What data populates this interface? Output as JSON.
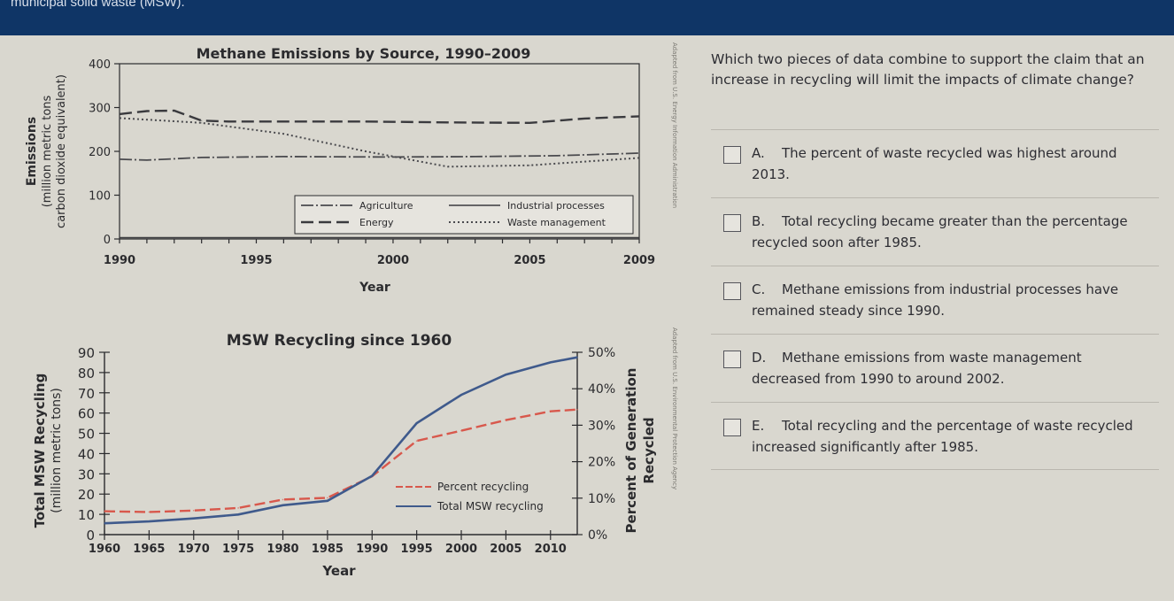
{
  "header": {
    "text": "municipal solid waste (MSW)."
  },
  "chart_data": [
    {
      "type": "line",
      "title": "Methane Emissions by Source, 1990–2009",
      "xlabel": "Year",
      "ylabel_line1": "Emissions",
      "ylabel_line2": "(million metric tons",
      "ylabel_line3": "carbon dioxide equivalent)",
      "xlim": [
        1990,
        2009
      ],
      "ylim": [
        0,
        400
      ],
      "xticks": [
        "1990",
        "1995",
        "2000",
        "2005",
        "2009"
      ],
      "yticks": [
        "0",
        "100",
        "200",
        "300",
        "400"
      ],
      "legend_position": "bottom-right",
      "series": [
        {
          "name": "Agriculture",
          "style": "dash-dot",
          "x": [
            1990,
            1991,
            1993,
            1996,
            2000,
            2003,
            2006,
            2009
          ],
          "values": [
            182,
            180,
            186,
            188,
            187,
            188,
            190,
            196
          ]
        },
        {
          "name": "Energy",
          "style": "dash",
          "x": [
            1990,
            1991,
            1992,
            1993,
            1994,
            1996,
            1999,
            2002,
            2005,
            2007,
            2009
          ],
          "values": [
            285,
            292,
            293,
            270,
            268,
            268,
            268,
            266,
            265,
            275,
            280
          ]
        },
        {
          "name": "Industrial processes",
          "style": "solid-thin",
          "x": [
            1990,
            2009
          ],
          "values": [
            3,
            3
          ]
        },
        {
          "name": "Waste management",
          "style": "dotted",
          "x": [
            1990,
            1993,
            1996,
            1999,
            2002,
            2005,
            2009
          ],
          "values": [
            276,
            265,
            240,
            200,
            165,
            168,
            185
          ]
        }
      ]
    },
    {
      "type": "line",
      "title": "MSW Recycling since 1960",
      "xlabel": "Year",
      "ylabel_line1": "Total MSW Recycling",
      "ylabel_line2": "(million metric tons)",
      "ylabel_right_line1": "Percent of Generation",
      "ylabel_right_line2": "Recycled",
      "xlim": [
        1960,
        2013
      ],
      "ylim": [
        0,
        90
      ],
      "y2lim": [
        0,
        50
      ],
      "xticks": [
        "1960",
        "1965",
        "1970",
        "1975",
        "1980",
        "1985",
        "1990",
        "1995",
        "2000",
        "2005",
        "2010"
      ],
      "yticks": [
        "0",
        "10",
        "20",
        "30",
        "40",
        "50",
        "60",
        "70",
        "80",
        "90"
      ],
      "y2ticks": [
        "0%",
        "10%",
        "20%",
        "30%",
        "40%",
        "50%"
      ],
      "legend_position": "bottom-right",
      "series": [
        {
          "name": "Percent recycling",
          "axis": "right",
          "style": "dash",
          "x": [
            1960,
            1965,
            1970,
            1975,
            1980,
            1985,
            1990,
            1995,
            2000,
            2005,
            2010,
            2013
          ],
          "values": [
            6.4,
            6.2,
            6.6,
            7.3,
            9.6,
            10.1,
            16,
            25.7,
            28.5,
            31.4,
            33.8,
            34.3
          ]
        },
        {
          "name": "Total MSW recycling",
          "axis": "left",
          "style": "solid",
          "x": [
            1960,
            1965,
            1970,
            1975,
            1980,
            1985,
            1990,
            1995,
            2000,
            2005,
            2010,
            2013
          ],
          "values": [
            5.6,
            6.5,
            8.0,
            9.9,
            14.5,
            16.7,
            29,
            55,
            69,
            79,
            85,
            87.5
          ]
        }
      ]
    }
  ],
  "question": {
    "stem": "Which two pieces of data combine to support the claim that an increase in recycling will limit the impacts of climate change?",
    "choices": [
      {
        "letter": "A.",
        "text": "The percent of waste recycled was highest around 2013."
      },
      {
        "letter": "B.",
        "text": "Total recycling became greater than the percentage recycled soon after 1985."
      },
      {
        "letter": "C.",
        "text": "Methane emissions from industrial processes have remained steady since 1990."
      },
      {
        "letter": "D.",
        "text": "Methane emissions from waste management decreased from 1990 to around 2002."
      },
      {
        "letter": "E.",
        "text": "Total recycling and the percentage of waste recycled increased significantly after 1985."
      }
    ]
  },
  "source_notes": {
    "chart1": "Adapted from U.S. Energy Information Administration",
    "chart2": "Adapted from U.S. Environmental Protection Agency"
  },
  "colors": {
    "header_bar": "#0f3566",
    "paper": "#d9d7cf",
    "ink": "#2b2b2e",
    "msw_total_line": "#3f5a8c",
    "msw_percent_line": "#d8584c"
  }
}
